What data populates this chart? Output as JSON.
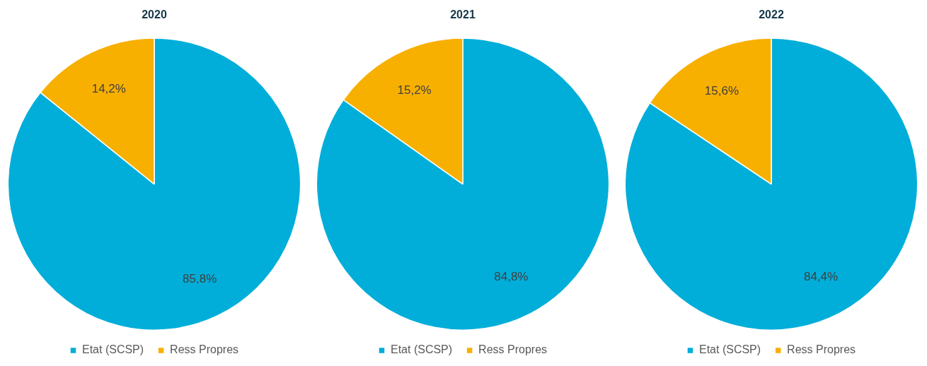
{
  "chart_data": [
    {
      "type": "pie",
      "title": "2020",
      "categories": [
        "Etat (SCSP)",
        "Ress Propres"
      ],
      "values": [
        85.8,
        14.2
      ],
      "colors": [
        "#00aed9",
        "#f8b000"
      ],
      "value_labels": [
        "85,8%",
        "14,2%"
      ],
      "legend": "bottom"
    },
    {
      "type": "pie",
      "title": "2021",
      "categories": [
        "Etat (SCSP)",
        "Ress Propres"
      ],
      "values": [
        84.8,
        15.2
      ],
      "colors": [
        "#00aed9",
        "#f8b000"
      ],
      "value_labels": [
        "84,8%",
        "15,2%"
      ],
      "legend": "bottom"
    },
    {
      "type": "pie",
      "title": "2022",
      "categories": [
        "Etat (SCSP)",
        "Ress Propres"
      ],
      "values": [
        84.4,
        15.6
      ],
      "colors": [
        "#00aed9",
        "#f8b000"
      ],
      "value_labels": [
        "84,4%",
        "15,6%"
      ],
      "legend": "bottom"
    }
  ]
}
